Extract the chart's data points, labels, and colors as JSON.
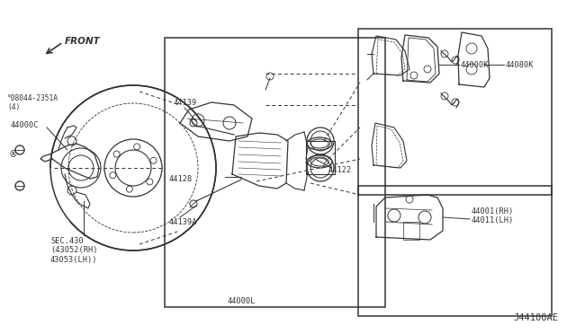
{
  "bg_color": "#ffffff",
  "line_color": "#333333",
  "fig_width": 6.4,
  "fig_height": 3.72,
  "dpi": 100,
  "title_code": "J44100AE",
  "labels": {
    "SEC430": "SEC.430\n(43052(RH)\n43053(LH))",
    "44000C": "44000C",
    "bolt": "°08044-2351A\n(4)",
    "44139A": "44139A",
    "44128": "44128",
    "44139": "44139",
    "44122": "44122",
    "44000L": "44000L",
    "44000K": "44000K",
    "44080K": "44080K",
    "44001": "44001(RH)\n44011(LH)",
    "FRONT": "FRONT"
  }
}
